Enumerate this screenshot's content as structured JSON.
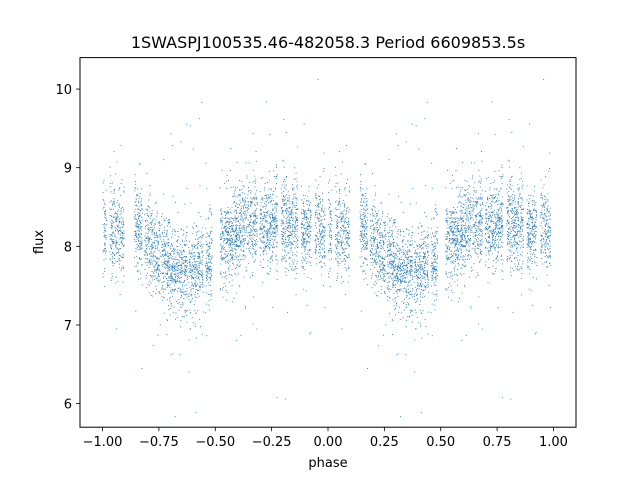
{
  "chart_data": {
    "type": "scatter",
    "title": "1SWASPJ100535.46-482058.3 Period 6609853.5s",
    "xlabel": "phase",
    "ylabel": "flux",
    "xlim": [
      -1.1,
      1.1
    ],
    "ylim": [
      5.7,
      10.4
    ],
    "xticks": [
      -1.0,
      -0.75,
      -0.5,
      -0.25,
      0.0,
      0.25,
      0.5,
      0.75,
      1.0
    ],
    "xtick_labels": [
      "−1.00",
      "−0.75",
      "−0.50",
      "−0.25",
      "0.00",
      "0.25",
      "0.50",
      "0.75",
      "1.00"
    ],
    "yticks": [
      6,
      7,
      8,
      9,
      10
    ],
    "ytick_labels": [
      "6",
      "7",
      "8",
      "9",
      "10"
    ],
    "grid": false,
    "marker_color": "#1f77b4",
    "series": [
      {
        "phase_mean_flux": [
          [
            0.0,
            8.2
          ],
          [
            0.05,
            8.25
          ],
          [
            0.1,
            8.15
          ],
          [
            0.15,
            8.3
          ],
          [
            0.2,
            8.1
          ],
          [
            0.25,
            7.85
          ],
          [
            0.3,
            7.75
          ],
          [
            0.35,
            7.7
          ],
          [
            0.4,
            7.7
          ],
          [
            0.45,
            7.75
          ],
          [
            0.5,
            8.0
          ],
          [
            0.55,
            8.1
          ],
          [
            0.6,
            8.2
          ],
          [
            0.65,
            8.25
          ],
          [
            0.7,
            8.2
          ],
          [
            0.75,
            8.3
          ],
          [
            0.8,
            8.35
          ],
          [
            0.85,
            8.25
          ],
          [
            0.9,
            8.15
          ],
          [
            0.95,
            8.25
          ]
        ],
        "gaps": [
          [
            0.015,
            0.03
          ],
          [
            0.095,
            0.14
          ],
          [
            0.175,
            0.185
          ],
          [
            0.255,
            0.26
          ],
          [
            0.375,
            0.38
          ],
          [
            0.445,
            0.455
          ],
          [
            0.485,
            0.52
          ],
          [
            0.685,
            0.695
          ],
          [
            0.775,
            0.79
          ],
          [
            0.865,
            0.88
          ],
          [
            0.925,
            0.94
          ],
          [
            0.985,
            1.0
          ]
        ]
      }
    ]
  }
}
